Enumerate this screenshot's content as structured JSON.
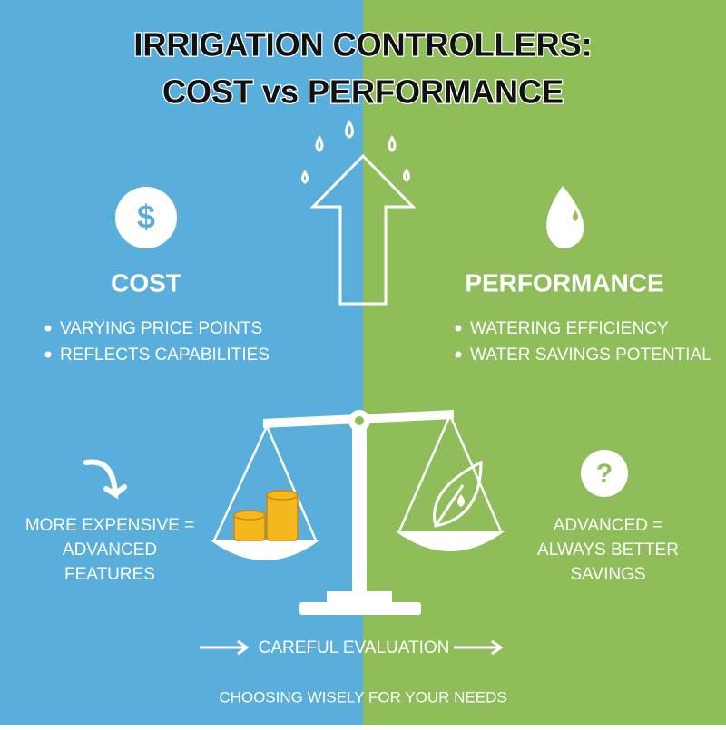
{
  "title": {
    "lines": [
      "IRRIGATION CONTROLLERS:",
      "COST vs PERFORMANCE"
    ]
  },
  "left": {
    "icon": "$",
    "heading": "COST",
    "bullets": [
      "VARYING PRICE POINTS",
      "REFLECTS CAPABILITIES"
    ],
    "note": [
      "MORE EXPENSIVE =",
      "ADVANCED",
      "FEATURES"
    ]
  },
  "right": {
    "icon": "?",
    "heading": "PERFORMANCE",
    "bullets": [
      "WATERING EFFICIENCY",
      "WATER SAVINGS POTENTIAL"
    ],
    "note": [
      "ADVANCED =",
      "ALWAYS BETTER",
      "SAVINGS"
    ]
  },
  "footer": {
    "evaluation": "CAREFUL EVALUATION",
    "tagline": "CHOOSING WISELY FOR YOUR NEEDS"
  }
}
